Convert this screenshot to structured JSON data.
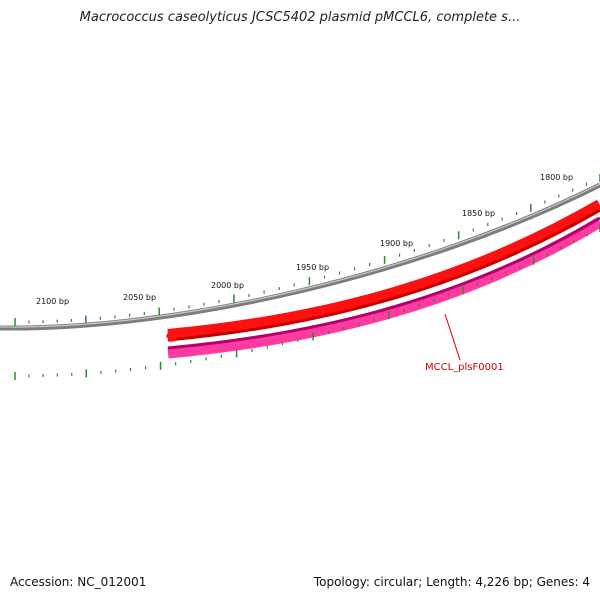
{
  "title": "Macrococcus caseolyticus JCSC5402 plasmid pMCCL6, complete s...",
  "footer": {
    "accession": "Accession: NC_012001",
    "summary": "Topology: circular; Length: 4,226 bp; Genes: 4"
  },
  "scale": {
    "tick_labels": [
      "1800 bp",
      "1850 bp",
      "1900 bp",
      "1950 bp",
      "2000 bp",
      "2050 bp",
      "2100 bp"
    ]
  },
  "genes": [
    {
      "label": "MCCL_plsF0001"
    }
  ],
  "colors": {
    "backbone": "#8a8a8a",
    "forward_feature": "#ff1010",
    "reverse_feature": "#ff3aa0",
    "tick": "#2a8a2a",
    "gene_label": "#cc0000"
  }
}
